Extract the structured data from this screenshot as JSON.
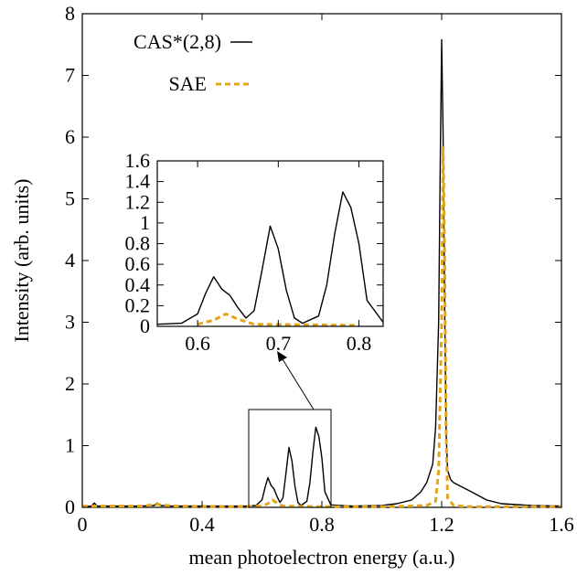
{
  "chart_data": {
    "type": "line",
    "xlabel": "mean photoelectron energy (a.u.)",
    "ylabel": "Intensity (arb. units)",
    "xlim": [
      0,
      1.6
    ],
    "ylim": [
      0,
      8
    ],
    "x_ticks": [
      "0",
      "0.4",
      "0.8",
      "1.2",
      "1.6"
    ],
    "y_ticks": [
      "0",
      "1",
      "2",
      "3",
      "4",
      "5",
      "6",
      "7",
      "8"
    ],
    "grid": false,
    "legend_position": "top-left",
    "series": [
      {
        "name": "CAS*(2,8)",
        "color": "#000000",
        "style": "solid",
        "x": [
          0,
          0.03,
          0.04,
          0.05,
          0.1,
          0.2,
          0.24,
          0.25,
          0.26,
          0.3,
          0.4,
          0.5,
          0.55,
          0.58,
          0.6,
          0.61,
          0.62,
          0.63,
          0.64,
          0.65,
          0.66,
          0.67,
          0.68,
          0.69,
          0.7,
          0.71,
          0.72,
          0.73,
          0.75,
          0.76,
          0.77,
          0.78,
          0.79,
          0.8,
          0.81,
          0.83,
          0.9,
          1.0,
          1.05,
          1.1,
          1.13,
          1.15,
          1.17,
          1.18,
          1.19,
          1.195,
          1.2,
          1.205,
          1.21,
          1.215,
          1.22,
          1.23,
          1.24,
          1.26,
          1.28,
          1.3,
          1.35,
          1.4,
          1.5,
          1.6
        ],
        "values": [
          0.01,
          0.02,
          0.07,
          0.02,
          0.02,
          0.02,
          0.03,
          0.07,
          0.03,
          0.02,
          0.02,
          0.02,
          0.02,
          0.03,
          0.12,
          0.32,
          0.48,
          0.36,
          0.3,
          0.18,
          0.08,
          0.15,
          0.55,
          0.97,
          0.75,
          0.35,
          0.08,
          0.03,
          0.1,
          0.4,
          0.9,
          1.3,
          1.15,
          0.8,
          0.25,
          0.04,
          0.02,
          0.03,
          0.06,
          0.12,
          0.25,
          0.4,
          0.7,
          1.3,
          3.0,
          5.5,
          7.58,
          6.0,
          3.2,
          1.2,
          0.6,
          0.45,
          0.4,
          0.35,
          0.3,
          0.25,
          0.12,
          0.06,
          0.03,
          0.02
        ]
      },
      {
        "name": "SAE",
        "color": "#e3a41a",
        "style": "dashed",
        "x": [
          0,
          0.1,
          0.2,
          0.25,
          0.3,
          0.5,
          0.6,
          0.62,
          0.635,
          0.65,
          0.67,
          0.8,
          1.0,
          1.15,
          1.18,
          1.19,
          1.2,
          1.205,
          1.21,
          1.215,
          1.22,
          1.24,
          1.3,
          1.4,
          1.6
        ],
        "values": [
          0.02,
          0.02,
          0.02,
          0.05,
          0.02,
          0.01,
          0.02,
          0.06,
          0.12,
          0.07,
          0.02,
          0.01,
          0.01,
          0.03,
          0.1,
          0.6,
          3.0,
          5.85,
          4.0,
          1.2,
          0.15,
          0.03,
          0.01,
          0.01,
          0.01
        ]
      }
    ],
    "inset": {
      "xlim": [
        0.55,
        0.83
      ],
      "ylim": [
        0,
        1.6
      ],
      "x_ticks": [
        "0.6",
        "0.7",
        "0.8"
      ],
      "y_ticks": [
        "0",
        "0.2",
        "0.4",
        "0.6",
        "0.8",
        "1",
        "1.2",
        "1.4",
        "1.6"
      ],
      "zoom_region": {
        "x": [
          0.55,
          0.83
        ],
        "y": [
          0,
          1.6
        ]
      }
    }
  }
}
